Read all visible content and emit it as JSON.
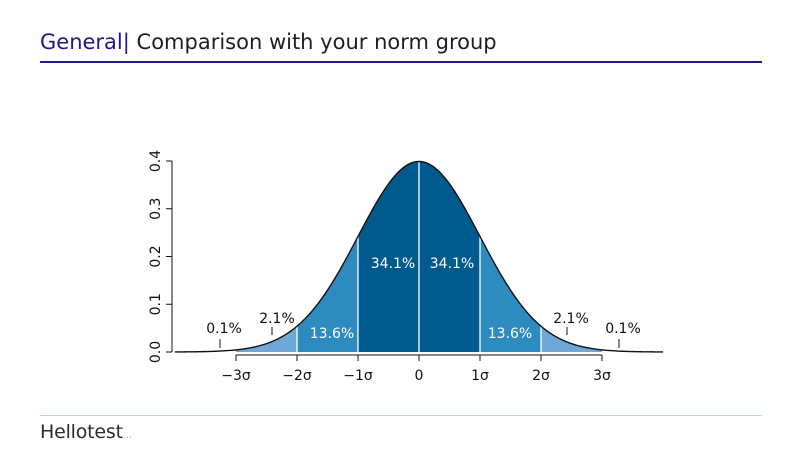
{
  "header": {
    "section": "General",
    "separator": "|",
    "title": "Comparison with your norm group"
  },
  "footer": {
    "logo": "Hellotest",
    "logo_mark": "..."
  },
  "colors": {
    "header_accent": "#1e1a8c",
    "band_1sigma": "#005a8e",
    "band_2sigma": "#2e8bc0",
    "band_3sigma": "#6fa8d6",
    "footer_rule": "#b7dcc6"
  },
  "chart_data": {
    "type": "area",
    "title": "",
    "xlabel": "",
    "ylabel": "",
    "distribution": "normal",
    "mean": 0,
    "sd": 1,
    "xlim": [
      -4,
      4
    ],
    "ylim": [
      0,
      0.4
    ],
    "x_ticks": [
      -3,
      -2,
      -1,
      0,
      1,
      2,
      3
    ],
    "x_tick_labels": [
      "−3σ",
      "−2σ",
      "−1σ",
      "0",
      "1σ",
      "2σ",
      "3σ"
    ],
    "y_ticks": [
      0.0,
      0.1,
      0.2,
      0.3,
      0.4
    ],
    "y_tick_labels": [
      "0.0",
      "0.1",
      "0.2",
      "0.3",
      "0.4"
    ],
    "bands": [
      {
        "from": -3,
        "to": -2,
        "label": "2.1%",
        "shade": "band_3sigma"
      },
      {
        "from": -2,
        "to": -1,
        "label": "13.6%",
        "shade": "band_2sigma"
      },
      {
        "from": -1,
        "to": 0,
        "label": "34.1%",
        "shade": "band_1sigma"
      },
      {
        "from": 0,
        "to": 1,
        "label": "34.1%",
        "shade": "band_1sigma"
      },
      {
        "from": 1,
        "to": 2,
        "label": "13.6%",
        "shade": "band_2sigma"
      },
      {
        "from": 2,
        "to": 3,
        "label": "2.1%",
        "shade": "band_3sigma"
      }
    ],
    "tails": [
      {
        "side": "left",
        "label": "0.1%"
      },
      {
        "side": "right",
        "label": "0.1%"
      }
    ]
  }
}
